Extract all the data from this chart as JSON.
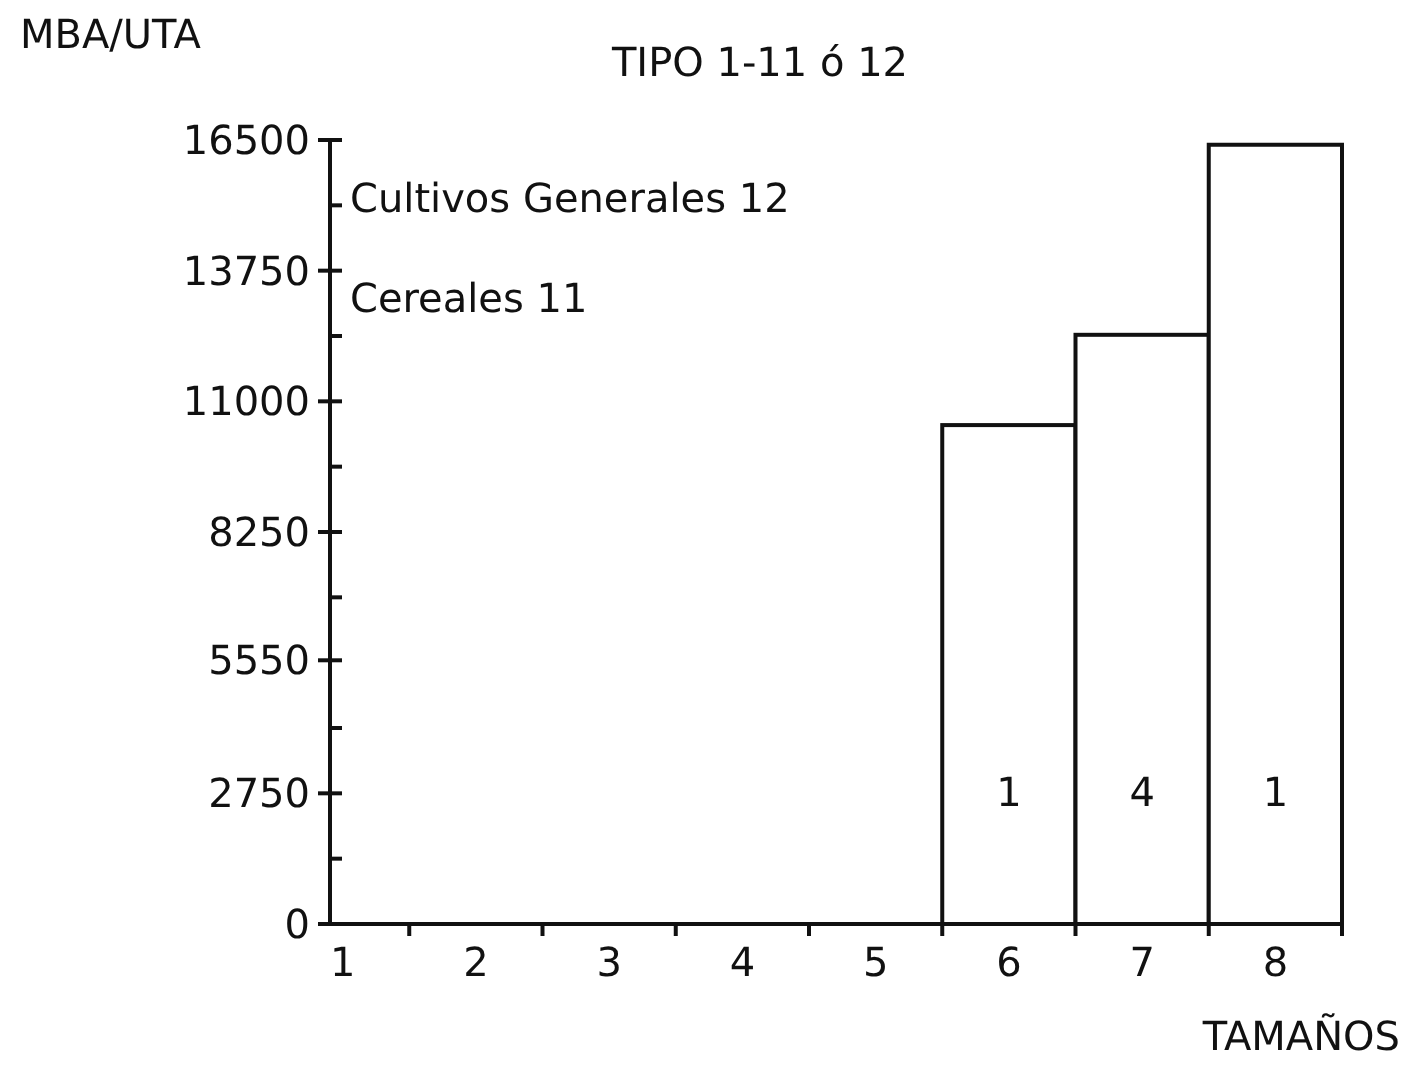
{
  "chart_data": {
    "type": "bar",
    "title": "TIPO 1-11 ó 12",
    "ylabel": "MBA/UTA",
    "xlabel": "TAMAÑOS",
    "categories": [
      "1",
      "2",
      "3",
      "4",
      "5",
      "6",
      "7",
      "8"
    ],
    "values": [
      0,
      0,
      0,
      0,
      0,
      10500,
      12400,
      16400
    ],
    "color": "#ffffff",
    "ylim": [
      0,
      16500
    ],
    "yticks": [
      0,
      {
        "value": 1375,
        "label": null
      },
      2750,
      {
        "value": 4125,
        "label": null
      },
      5550,
      {
        "value": 6875,
        "label": null
      },
      8250,
      {
        "value": 9625,
        "label": null
      },
      11000,
      {
        "value": 12375,
        "label": null
      },
      13750,
      {
        "value": 15125,
        "label": null
      },
      16500
    ],
    "annotations": [
      "Cultivos Generales 12",
      "Cereales 11",
      "1",
      "4",
      "1"
    ]
  }
}
